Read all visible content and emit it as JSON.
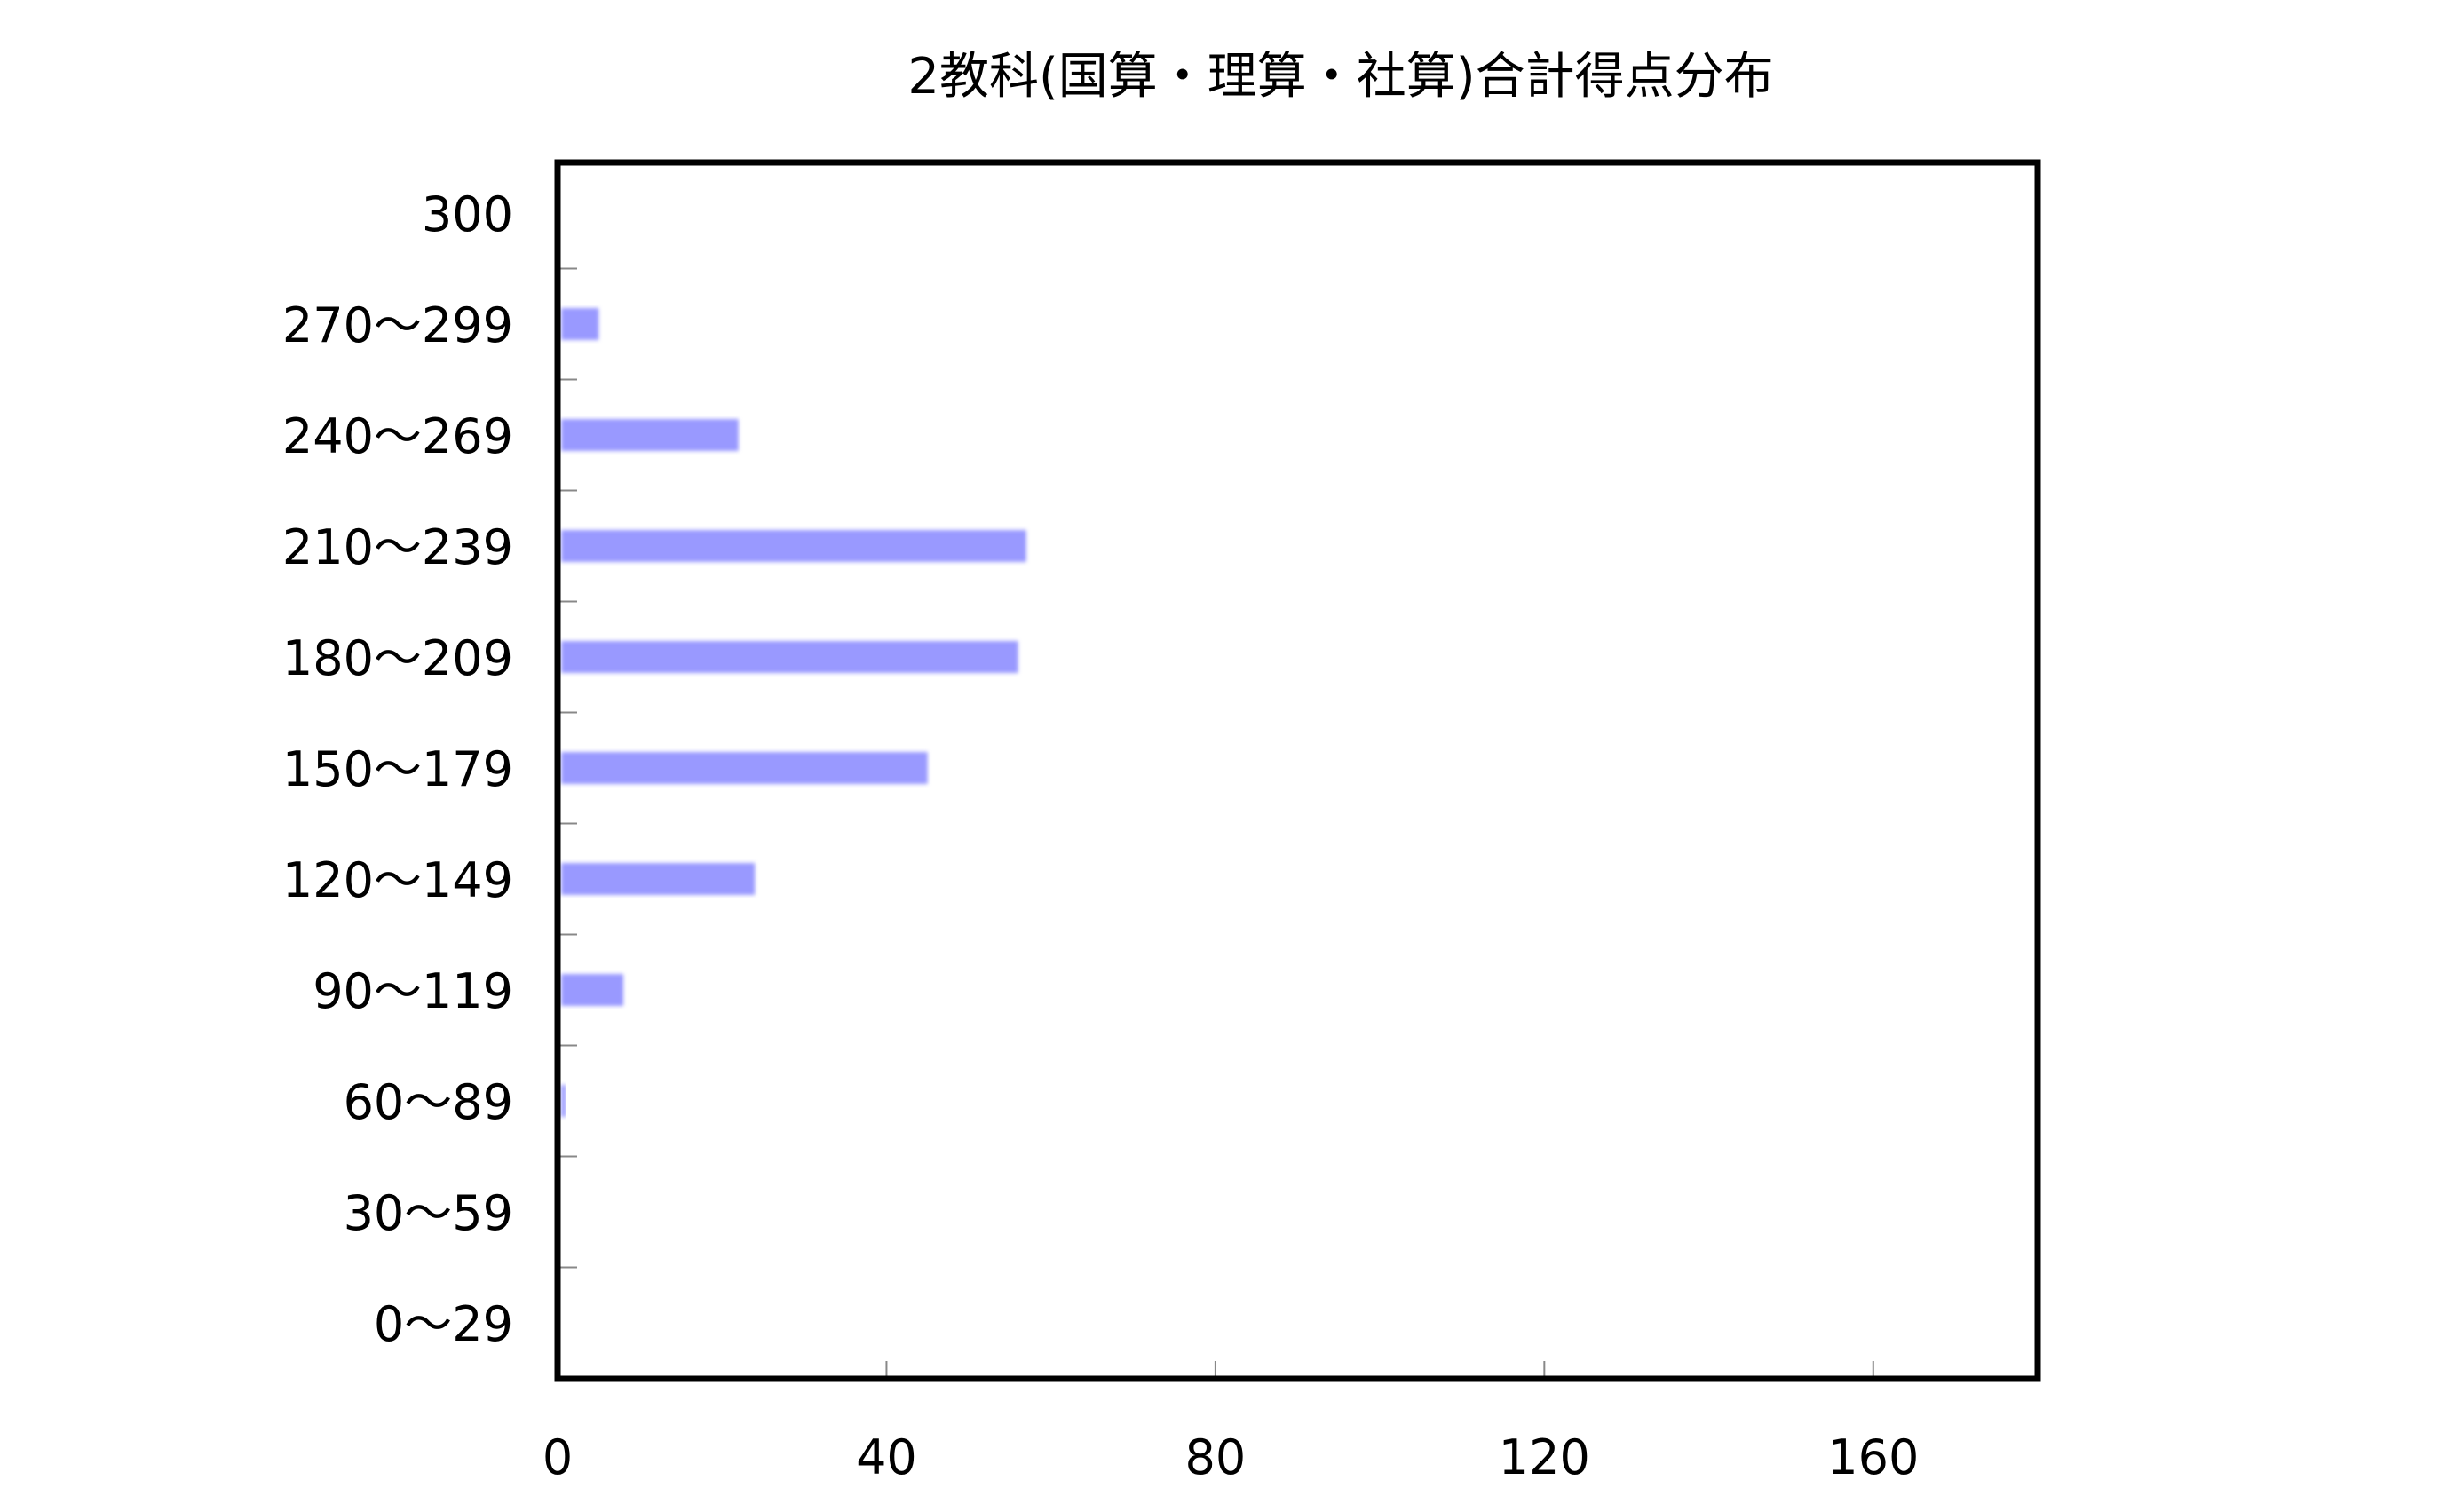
{
  "chart_data": {
    "type": "bar",
    "orientation": "horizontal",
    "title": "2教科(国算・理算・社算)合計得点分布",
    "xlabel": "",
    "ylabel": "",
    "categories": [
      "0〜29",
      "30〜59",
      "60〜89",
      "90〜119",
      "120〜149",
      "150〜179",
      "180〜209",
      "210〜239",
      "240〜269",
      "270〜299",
      "300"
    ],
    "values": [
      0,
      0,
      1,
      8,
      24,
      45,
      56,
      57,
      22,
      5,
      0
    ],
    "xlim": [
      0,
      180
    ],
    "xticks": [
      "0",
      "40",
      "80",
      "120",
      "160"
    ],
    "grid": false,
    "legend": "none",
    "bar_color": "#9999ff",
    "frame_color": "#000000"
  }
}
